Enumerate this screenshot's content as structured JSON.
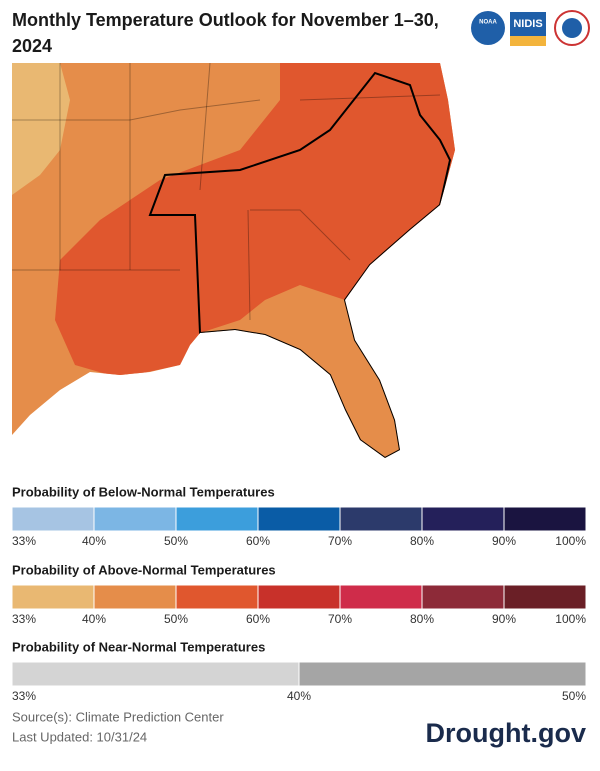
{
  "header": {
    "title_lines": [
      "Monthly Temperature Outlook for November 1–30,",
      "2024"
    ],
    "logos": [
      "NOAA",
      "NIDIS"
    ]
  },
  "legends": [
    {
      "title": "Probability of Below-Normal Temperatures",
      "colors": [
        "#a6c4e3",
        "#7cb6e4",
        "#3c9edc",
        "#0a5ca6",
        "#2c3a6b",
        "#24205a",
        "#1a1440"
      ],
      "ticks": [
        "33%",
        "40%",
        "50%",
        "60%",
        "70%",
        "80%",
        "90%",
        "100%"
      ]
    },
    {
      "title": "Probability of Above-Normal Temperatures",
      "colors": [
        "#e9b872",
        "#e58d4a",
        "#e0572e",
        "#c8312a",
        "#cf2c4a",
        "#8d2a38",
        "#6a1f26"
      ],
      "ticks": [
        "33%",
        "40%",
        "50%",
        "60%",
        "70%",
        "80%",
        "90%",
        "100%"
      ]
    },
    {
      "title": "Probability of Near-Normal Temperatures",
      "colors": [
        "#d4d4d4",
        "#a5a5a5"
      ],
      "ticks": [
        "33%",
        "40%",
        "50%"
      ]
    }
  ],
  "footer": {
    "source": "Source(s): Climate Prediction Center",
    "updated": "Last Updated: 10/31/24",
    "brand": "Drought.gov"
  }
}
